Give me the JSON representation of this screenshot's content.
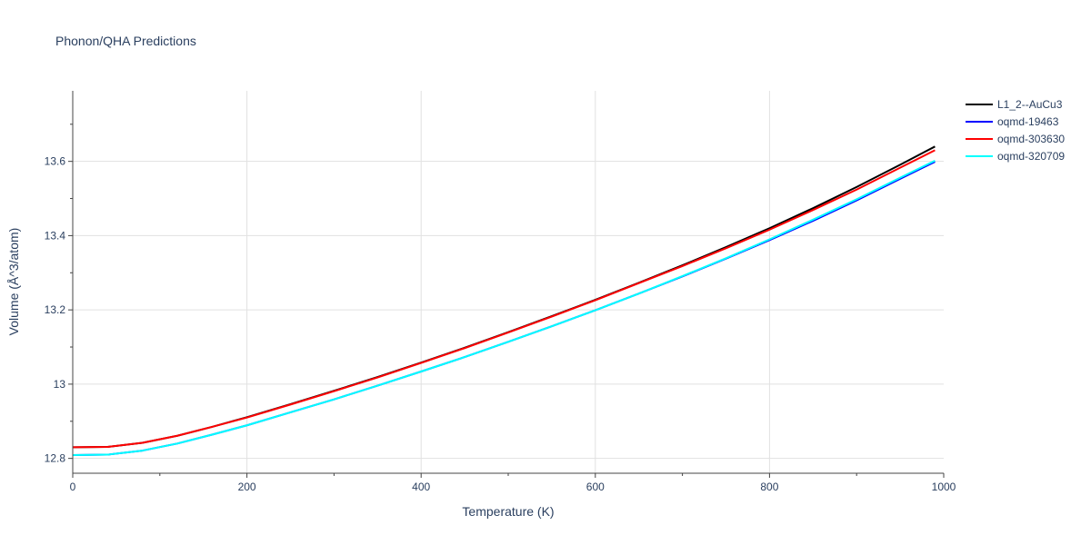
{
  "chart_data": {
    "type": "line",
    "title": "Phonon/QHA Predictions",
    "xlabel": "Temperature (K)",
    "ylabel": "Volume (Å^3/atom)",
    "xlim": [
      0,
      1000
    ],
    "ylim": [
      12.76,
      13.79
    ],
    "x_ticks": [
      0,
      200,
      400,
      600,
      800,
      1000
    ],
    "x_tick_labels": [
      "0",
      "200",
      "400",
      "600",
      "800",
      "1000"
    ],
    "y_ticks": [
      12.8,
      13.0,
      13.2,
      13.4,
      13.6
    ],
    "y_tick_labels": [
      "12.8",
      "13",
      "13.2",
      "13.4",
      "13.6"
    ],
    "grid": true,
    "legend_position": "top-right",
    "x": [
      0,
      40,
      80,
      120,
      160,
      200,
      250,
      300,
      350,
      400,
      450,
      500,
      550,
      600,
      650,
      700,
      750,
      800,
      850,
      900,
      950,
      990
    ],
    "series": [
      {
        "name": "L1_2--AuCu3",
        "color": "#000000",
        "values": [
          12.83,
          12.831,
          12.842,
          12.861,
          12.885,
          12.911,
          12.946,
          12.982,
          13.019,
          13.058,
          13.098,
          13.14,
          13.183,
          13.227,
          13.273,
          13.32,
          13.369,
          13.42,
          13.474,
          13.531,
          13.591,
          13.64
        ]
      },
      {
        "name": "oqmd-19463",
        "color": "#0000ff",
        "values": [
          12.809,
          12.81,
          12.821,
          12.84,
          12.864,
          12.889,
          12.924,
          12.959,
          12.996,
          13.034,
          13.073,
          13.114,
          13.156,
          13.199,
          13.244,
          13.29,
          13.338,
          13.388,
          13.44,
          13.495,
          13.553,
          13.599
        ]
      },
      {
        "name": "oqmd-303630",
        "color": "#ff0000",
        "values": [
          12.83,
          12.831,
          12.842,
          12.861,
          12.885,
          12.91,
          12.945,
          12.981,
          13.018,
          13.057,
          13.097,
          13.139,
          13.182,
          13.226,
          13.272,
          13.318,
          13.366,
          13.416,
          13.469,
          13.524,
          13.583,
          13.63
        ]
      },
      {
        "name": "oqmd-320709",
        "color": "#00ffff",
        "values": [
          12.809,
          12.81,
          12.821,
          12.84,
          12.864,
          12.889,
          12.924,
          12.959,
          12.996,
          13.034,
          13.073,
          13.114,
          13.156,
          13.199,
          13.244,
          13.291,
          13.339,
          13.39,
          13.443,
          13.498,
          13.556,
          13.602
        ]
      }
    ]
  }
}
